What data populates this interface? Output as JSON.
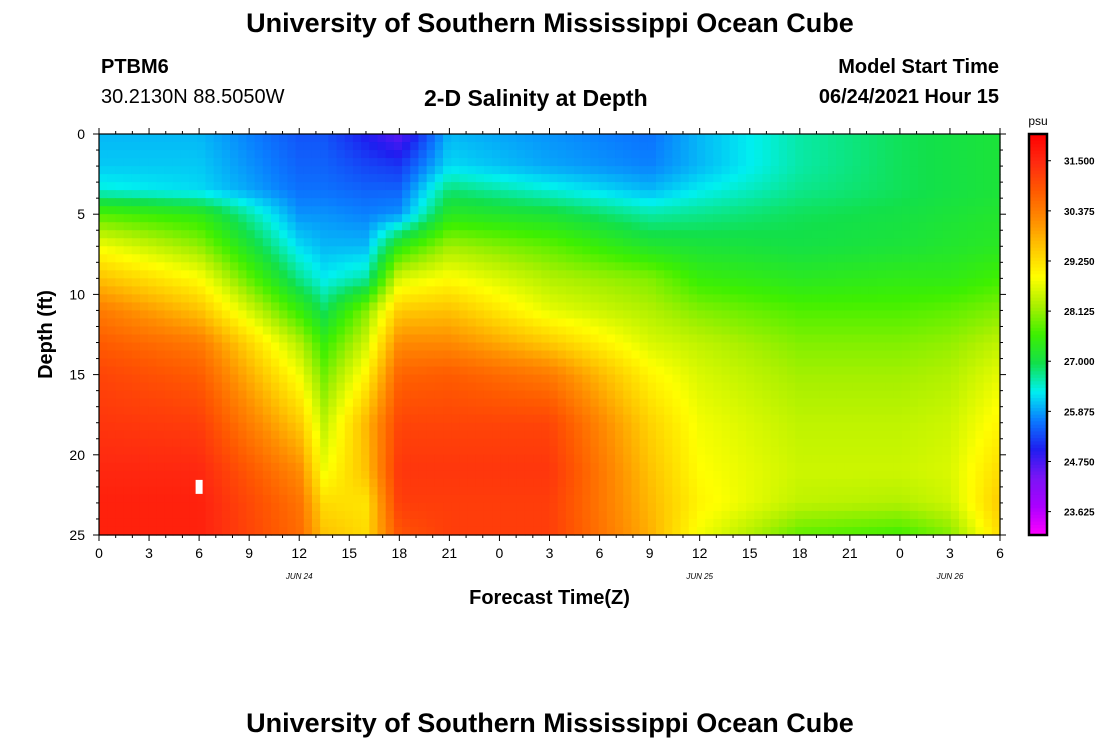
{
  "header": {
    "title": "University of Southern Mississippi Ocean Cube",
    "station_id": "PTBM6",
    "station_coords": "30.2130N  88.5050W",
    "subtitle": "2-D Salinity at Depth",
    "model_start_label": "Model Start Time",
    "model_start_value": "06/24/2021 Hour 15"
  },
  "footer": {
    "title": "University of Southern Mississippi Ocean Cube"
  },
  "chart_data": {
    "type": "heatmap",
    "title": "2-D Salinity at Depth",
    "xlabel": "Forecast Time(Z)",
    "ylabel": "Depth (ft)",
    "x_start_hour_offset": 0,
    "x_end_hour_offset": 54,
    "x_ticks": [
      "0",
      "3",
      "6",
      "9",
      "12",
      "15",
      "18",
      "21",
      "0",
      "3",
      "6",
      "9",
      "12",
      "15",
      "18",
      "21",
      "0",
      "3",
      "6"
    ],
    "date_labels": [
      {
        "label": "JUN 24",
        "hour_offset": 12
      },
      {
        "label": "JUN 25",
        "hour_offset": 36
      },
      {
        "label": "JUN 26",
        "hour_offset": 51
      }
    ],
    "ylim": [
      0,
      25
    ],
    "y_ticks": [
      0,
      5,
      10,
      15,
      20,
      25
    ],
    "colorbar": {
      "unit": "psu",
      "min": 23.1,
      "max": 32.1,
      "tick_labels": [
        "31.500",
        "30.375",
        "29.250",
        "28.125",
        "27.000",
        "25.875",
        "24.750",
        "23.625"
      ],
      "tick_values": [
        31.5,
        30.375,
        29.25,
        28.125,
        27.0,
        25.875,
        24.75,
        23.625
      ],
      "colors": [
        "#ff00ff",
        "#aa00ff",
        "#7a14f5",
        "#1e1ef0",
        "#0a7cff",
        "#00f0f0",
        "#12e04a",
        "#3ef000",
        "#aaf000",
        "#ffff00",
        "#ffc800",
        "#ff8c00",
        "#ff5a00",
        "#ff2a10",
        "#ff0000"
      ]
    },
    "salinity_psu_time_series": {
      "hour_offsets": [
        0,
        6,
        12,
        13.5,
        16,
        18,
        21,
        27,
        33,
        36,
        42,
        48,
        51,
        54
      ],
      "depths_ft": [
        0,
        2,
        3.5,
        5,
        7,
        9,
        11,
        13,
        15,
        18,
        21,
        23,
        25
      ],
      "values": [
        [
          26.0,
          26.0,
          25.4,
          25.4,
          25.0,
          24.6,
          26.0,
          25.8,
          25.6,
          26.0,
          26.6,
          26.9,
          27.0,
          27.1
        ],
        [
          26.1,
          26.1,
          25.5,
          25.5,
          25.3,
          25.2,
          26.2,
          25.9,
          25.7,
          26.0,
          26.6,
          26.9,
          27.0,
          27.1
        ],
        [
          26.4,
          26.2,
          25.6,
          25.6,
          25.5,
          25.5,
          26.8,
          26.4,
          26.0,
          26.3,
          26.7,
          26.9,
          27.0,
          27.1
        ],
        [
          27.7,
          27.4,
          25.8,
          25.8,
          25.7,
          25.8,
          27.3,
          27.1,
          26.6,
          26.7,
          26.9,
          27.0,
          27.1,
          27.2
        ],
        [
          28.8,
          28.1,
          26.2,
          26.0,
          26.0,
          27.4,
          28.2,
          27.8,
          27.2,
          27.1,
          27.0,
          27.1,
          27.2,
          27.3
        ],
        [
          29.6,
          28.9,
          26.7,
          26.3,
          26.6,
          28.6,
          28.9,
          28.3,
          28.0,
          27.5,
          27.3,
          27.4,
          27.4,
          27.6
        ],
        [
          30.4,
          29.6,
          27.5,
          26.9,
          28.0,
          29.5,
          29.6,
          28.7,
          28.3,
          28.0,
          27.7,
          27.7,
          27.8,
          28.0
        ],
        [
          30.8,
          30.4,
          28.3,
          27.5,
          28.5,
          30.2,
          30.2,
          29.5,
          28.6,
          28.4,
          28.0,
          28.0,
          28.1,
          28.4
        ],
        [
          31.1,
          30.8,
          28.8,
          27.9,
          29.0,
          30.7,
          30.8,
          30.4,
          29.0,
          28.6,
          28.2,
          28.2,
          28.3,
          28.7
        ],
        [
          31.3,
          31.2,
          29.5,
          28.4,
          29.7,
          31.1,
          31.1,
          31.1,
          29.4,
          28.8,
          28.4,
          28.4,
          28.5,
          29.0
        ],
        [
          31.5,
          31.5,
          30.2,
          28.8,
          29.6,
          31.3,
          31.3,
          31.3,
          29.6,
          28.9,
          28.5,
          28.5,
          28.6,
          29.3
        ],
        [
          31.6,
          31.6,
          30.5,
          29.3,
          29.2,
          31.2,
          31.2,
          31.2,
          29.7,
          29.0,
          28.4,
          28.3,
          28.5,
          29.5
        ],
        [
          31.6,
          31.6,
          30.6,
          29.6,
          29.3,
          30.9,
          31.2,
          31.2,
          29.8,
          28.8,
          27.8,
          27.6,
          28.0,
          29.3
        ]
      ]
    },
    "annotations": [
      {
        "type": "white-marker",
        "hour_offset": 6.0,
        "depth_ft": 22
      }
    ]
  }
}
